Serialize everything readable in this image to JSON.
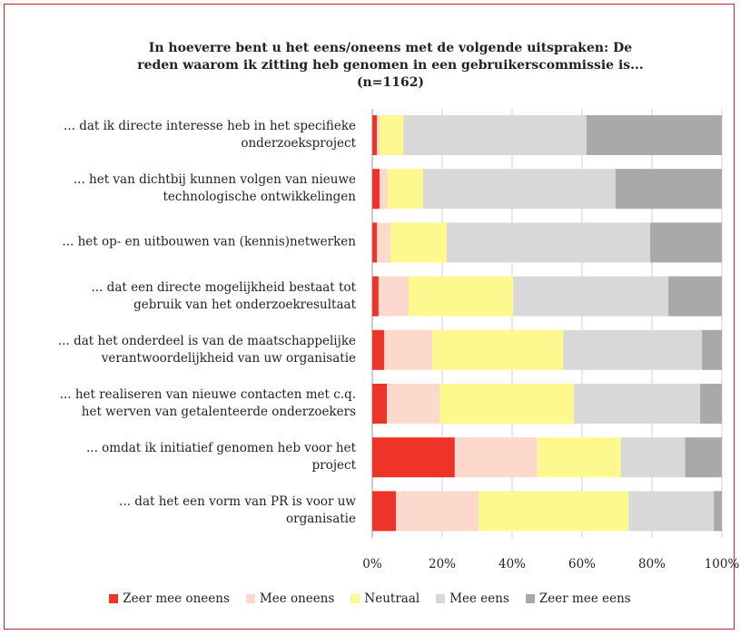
{
  "chart_data": {
    "type": "stacked-barh",
    "title": "In hoeverre bent u het eens/oneens met de volgende uitspraken: De\nreden waarom ik zitting heb genomen in een gebruikerscommissie is...\n(n=1162)",
    "categories": [
      "... dat ik directe interesse heb in het specifieke\nonderzoeksproject",
      "... het van dichtbij kunnen volgen van nieuwe\ntechnologische ontwikkelingen",
      "... het op- en uitbouwen van (kennis)netwerken",
      "... dat een directe mogelijkheid bestaat tot\ngebruik van het onderzoekresultaat",
      "... dat het onderdeel is van de maatschappelijke\nverantwoordelijkheid van uw organisatie",
      "... het realiseren van nieuwe contacten met c.q.\nhet werven van getalenteerde onderzoekers",
      "... omdat ik initiatief genomen heb voor het\nproject",
      "... dat het een vorm van PR is voor uw\norganisatie"
    ],
    "series": [
      {
        "name": "Zeer mee oneens",
        "color": "#ee3329",
        "values": [
          1.3,
          2.1,
          1.3,
          1.8,
          3.4,
          4.2,
          23.6,
          6.8
        ]
      },
      {
        "name": "Mee oneens",
        "color": "#fcd8cd",
        "values": [
          0.8,
          2.3,
          3.9,
          8.6,
          13.8,
          15.1,
          23.6,
          23.6
        ]
      },
      {
        "name": "Neutraal",
        "color": "#fdf98f",
        "values": [
          6.8,
          10.1,
          16.1,
          29.9,
          37.4,
          38.4,
          23.9,
          42.9
        ]
      },
      {
        "name": "Mee eens",
        "color": "#d8d8d8",
        "values": [
          52.4,
          55.1,
          58.2,
          44.4,
          39.7,
          36.1,
          18.4,
          24.4
        ]
      },
      {
        "name": "Zeer mee eens",
        "color": "#a9a9a9",
        "values": [
          38.7,
          30.4,
          20.5,
          15.3,
          5.7,
          6.2,
          10.5,
          2.3
        ]
      }
    ],
    "xlim": [
      0,
      100
    ],
    "xticks": [
      {
        "value": 0,
        "label": "0%"
      },
      {
        "value": 20,
        "label": "20%"
      },
      {
        "value": 40,
        "label": "40%"
      },
      {
        "value": 60,
        "label": "60%"
      },
      {
        "value": 80,
        "label": "80%"
      },
      {
        "value": 100,
        "label": "100%"
      }
    ],
    "grid": true
  }
}
